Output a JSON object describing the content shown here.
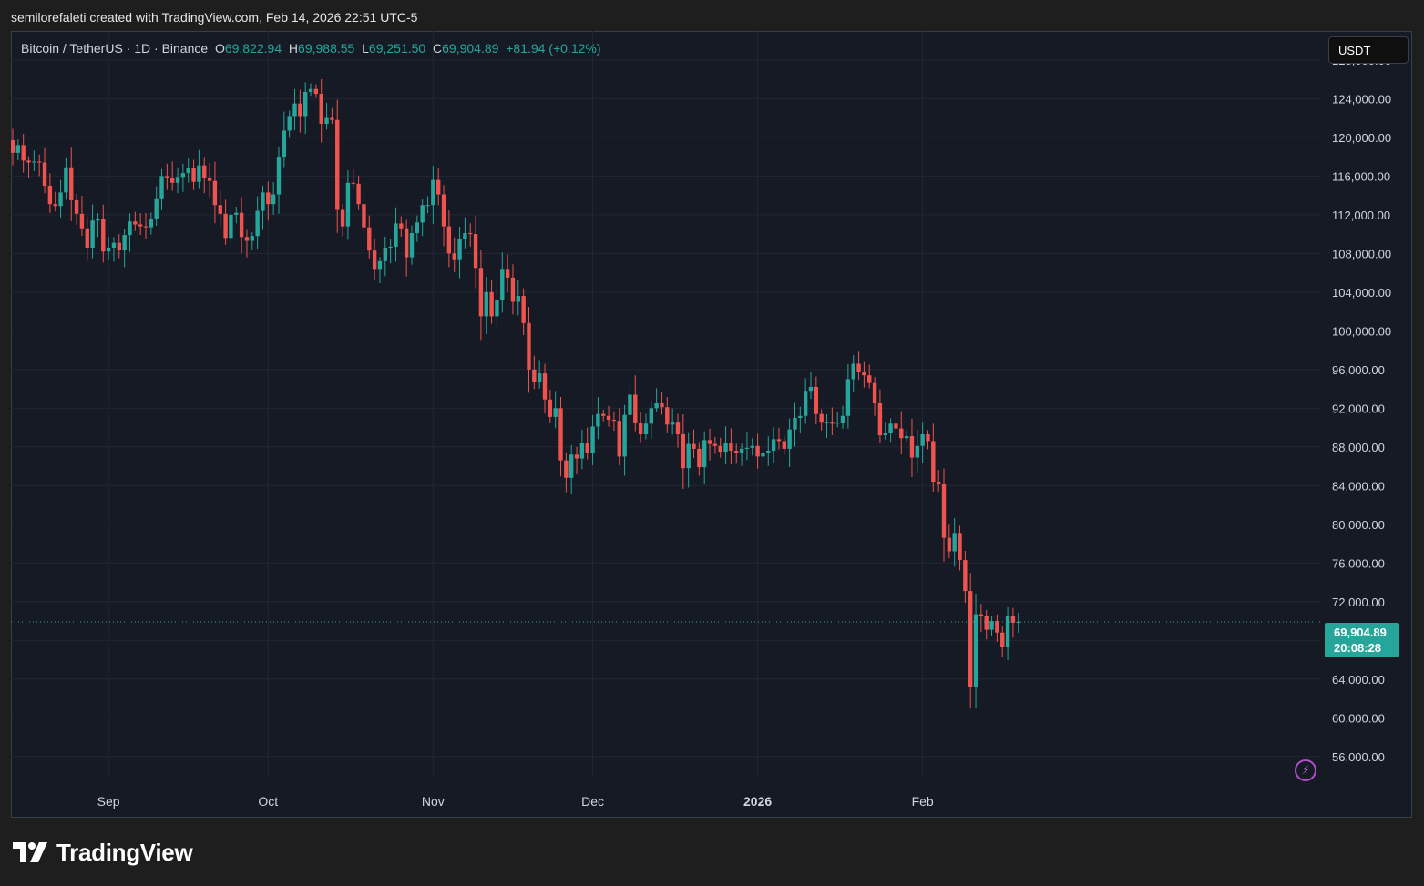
{
  "header": {
    "attribution": "semilorefaleti created with TradingView.com, Feb 14, 2026 22:51 UTC-5"
  },
  "legend": {
    "symbol": "Bitcoin / TetherUS · 1D · Binance",
    "open_label": "O",
    "open": "69,822.94",
    "high_label": "H",
    "high": "69,988.55",
    "low_label": "L",
    "low": "69,251.50",
    "close_label": "C",
    "close": "69,904.89",
    "change": "+81.94 (+0.12%)"
  },
  "currency": "USDT",
  "last_price": {
    "price": "69,904.89",
    "countdown": "20:08:28"
  },
  "brand": {
    "name": "TradingView",
    "icon": "tradingview-logo-icon"
  },
  "status_icon": "lightning-icon",
  "colors": {
    "up": "#26a69a",
    "down": "#ef5350",
    "background": "#161a25",
    "grid": "#232733"
  },
  "chart_data": {
    "type": "candlestick",
    "title": "",
    "ylim": [
      54000,
      131000
    ],
    "y_ticks": [
      "56,000.00",
      "60,000.00",
      "64,000.00",
      "68,000.00",
      "72,000.00",
      "76,000.00",
      "80,000.00",
      "84,000.00",
      "88,000.00",
      "92,000.00",
      "96,000.00",
      "100,000.00",
      "104,000.00",
      "108,000.00",
      "112,000.00",
      "116,000.00",
      "120,000.00",
      "124,000.00",
      "128,000.00"
    ],
    "x_ticks": [
      {
        "label": "Sep",
        "date": "2025-09-01"
      },
      {
        "label": "Oct",
        "date": "2025-10-01"
      },
      {
        "label": "Nov",
        "date": "2025-11-01"
      },
      {
        "label": "Dec",
        "date": "2025-12-01"
      },
      {
        "label": "2026",
        "date": "2026-01-01"
      },
      {
        "label": "Feb",
        "date": "2026-02-01"
      }
    ],
    "first_date": "2025-08-14",
    "last_price": 69904.89,
    "closes": [
      118400,
      119200,
      117600,
      117400,
      117500,
      117400,
      115000,
      113100,
      112900,
      114300,
      116900,
      113500,
      112100,
      110600,
      108600,
      111400,
      111600,
      108200,
      108600,
      109100,
      108400,
      109900,
      111300,
      111000,
      110800,
      110700,
      111600,
      113700,
      116000,
      115800,
      115300,
      115900,
      116300,
      116800,
      115400,
      117100,
      115800,
      115500,
      113000,
      112100,
      109600,
      112000,
      112200,
      109700,
      109300,
      109800,
      112400,
      114300,
      113100,
      114100,
      118000,
      120700,
      122200,
      123500,
      122200,
      124700,
      125000,
      124500,
      121400,
      122000,
      121800,
      112500,
      110800,
      115300,
      115200,
      113100,
      110700,
      108300,
      106400,
      107200,
      108600,
      108700,
      111100,
      110600,
      107600,
      110100,
      111200,
      113000,
      113000,
      115600,
      114100,
      110800,
      108000,
      107400,
      109500,
      110100,
      110000,
      106500,
      101500,
      104000,
      101500,
      103200,
      106400,
      105500,
      103000,
      103600,
      100800,
      96000,
      94700,
      95600,
      92900,
      91100,
      92000,
      86600,
      84800,
      87200,
      86800,
      88400,
      87400,
      90100,
      91400,
      91200,
      90800,
      90700,
      87000,
      91300,
      93400,
      90500,
      89300,
      90400,
      92000,
      92500,
      92100,
      90300,
      90600,
      89300,
      85800,
      88300,
      87800,
      85900,
      88700,
      88300,
      88100,
      87500,
      88400,
      87600,
      87400,
      87800,
      87900,
      88100,
      87000,
      87400,
      87600,
      88800,
      88600,
      87800,
      89800,
      91000,
      91200,
      93800,
      94200,
      91400,
      90600,
      90600,
      90400,
      90500,
      91200,
      95000,
      96600,
      95700,
      95400,
      94600,
      92500,
      89200,
      89400,
      90400,
      89900,
      88900,
      89100,
      86900,
      88100,
      89300,
      88600,
      84400,
      84200,
      78600,
      77200,
      79100,
      76300,
      73100,
      63200,
      70700,
      70500,
      69100,
      70000,
      68800,
      67300,
      70500,
      69822,
      69904.89
    ]
  }
}
